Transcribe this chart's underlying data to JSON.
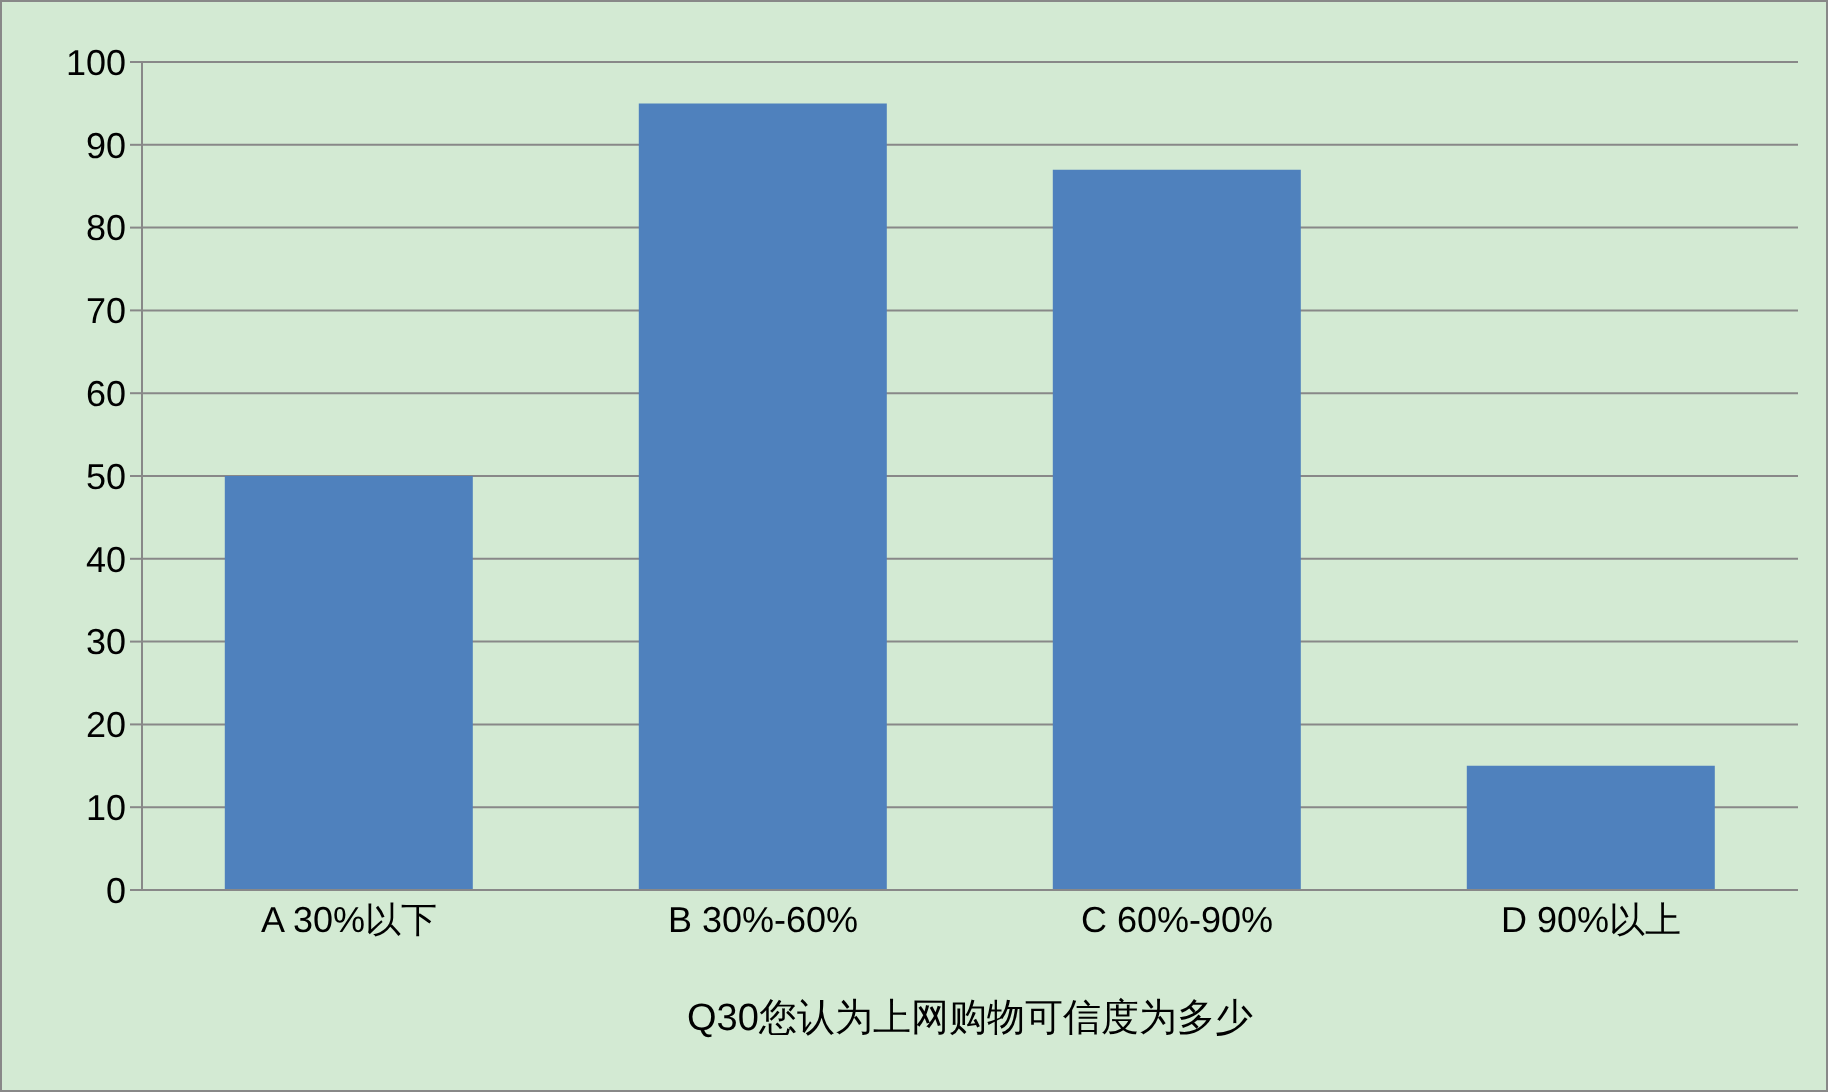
{
  "chart_data": {
    "type": "bar",
    "categories": [
      "A 30%以下",
      "B 30%-60%",
      "C 60%-90%",
      "D 90%以上"
    ],
    "values": [
      50,
      95,
      87,
      15
    ],
    "color": "#4f81bd",
    "xlabel": "Q30您认为上网购物可信度为多少",
    "ylim": [
      0,
      100
    ],
    "yticks": [
      0,
      10,
      20,
      30,
      40,
      50,
      60,
      70,
      80,
      90,
      100
    ],
    "grid": "y"
  }
}
